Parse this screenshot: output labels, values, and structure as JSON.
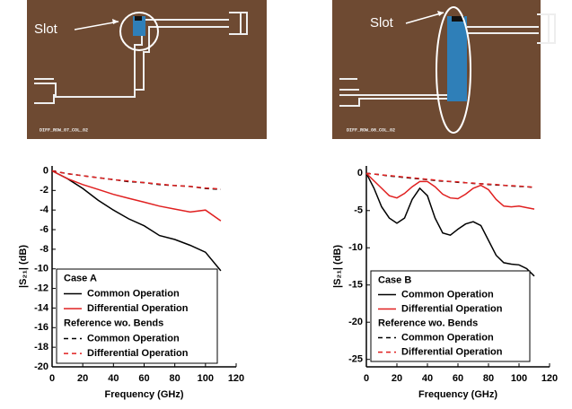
{
  "photos": [
    {
      "label": "Slot",
      "caption": "DIFF_ROW_07_COL_02"
    },
    {
      "label": "Slot",
      "caption": "DIFF_ROW_08_COL_02"
    }
  ],
  "chart_data": [
    {
      "type": "line",
      "xlabel": "Frequency (GHz)",
      "ylabel": "|S₂₁| (dB)",
      "xlim": [
        0,
        120
      ],
      "xticks": [
        0,
        20,
        40,
        60,
        80,
        100,
        120
      ],
      "ylim": [
        -20,
        0.5
      ],
      "yticks": [
        0,
        -2,
        -4,
        -6,
        -8,
        -10,
        -12,
        -14,
        -16,
        -18,
        -20
      ],
      "legend": "lower left",
      "legend_title": "Case A",
      "legend_subtitle": "Reference wo. Bends",
      "x": [
        0,
        10,
        20,
        30,
        40,
        50,
        60,
        70,
        80,
        90,
        100,
        110
      ],
      "series": [
        {
          "name": "Common Operation",
          "color": "#000000",
          "style": "solid",
          "values": [
            0,
            -0.8,
            -1.8,
            -3,
            -4,
            -4.9,
            -5.6,
            -6.6,
            -7.0,
            -7.6,
            -8.3,
            -10.2
          ]
        },
        {
          "name": "Differential Operation",
          "color": "#e02020",
          "style": "solid",
          "values": [
            0,
            -0.8,
            -1.4,
            -1.9,
            -2.4,
            -2.8,
            -3.2,
            -3.6,
            -3.9,
            -4.2,
            -4.0,
            -5.1
          ]
        },
        {
          "name": "Common Operation",
          "color": "#000000",
          "style": "dashed",
          "values": [
            0,
            -0.3,
            -0.5,
            -0.7,
            -0.9,
            -1.1,
            -1.2,
            -1.4,
            -1.5,
            -1.6,
            -1.8,
            -1.9
          ]
        },
        {
          "name": "Differential Operation",
          "color": "#e02020",
          "style": "dashed",
          "values": [
            0,
            -0.3,
            -0.5,
            -0.7,
            -0.9,
            -1.05,
            -1.2,
            -1.35,
            -1.5,
            -1.6,
            -1.75,
            -1.85
          ]
        }
      ]
    },
    {
      "type": "line",
      "xlabel": "Frequency (GHz)",
      "ylabel": "|S₂₁| (dB)",
      "xlim": [
        0,
        120
      ],
      "xticks": [
        0,
        20,
        40,
        60,
        80,
        100,
        120
      ],
      "ylim": [
        -26,
        1
      ],
      "yticks": [
        0,
        -5,
        -10,
        -15,
        -20,
        -25
      ],
      "legend": "lower left",
      "legend_title": "Case B",
      "legend_subtitle": "Reference wo. Bends",
      "x": [
        0,
        5,
        10,
        15,
        20,
        25,
        30,
        35,
        40,
        45,
        50,
        55,
        60,
        65,
        70,
        75,
        80,
        85,
        90,
        95,
        100,
        105,
        110
      ],
      "series": [
        {
          "name": "Common Operation",
          "color": "#000000",
          "style": "solid",
          "values": [
            0,
            -2,
            -4.5,
            -6,
            -6.7,
            -6,
            -3.5,
            -2,
            -3,
            -6,
            -8,
            -8.3,
            -7.5,
            -6.8,
            -6.5,
            -7,
            -9,
            -11,
            -12,
            -12.2,
            -12.3,
            -12.8,
            -13.8
          ]
        },
        {
          "name": "Differential Operation",
          "color": "#e02020",
          "style": "solid",
          "values": [
            0,
            -1,
            -2,
            -3,
            -3.3,
            -2.7,
            -1.8,
            -1.1,
            -1.1,
            -1.8,
            -2.8,
            -3.3,
            -3.4,
            -2.8,
            -2,
            -1.6,
            -2.2,
            -3.5,
            -4.4,
            -4.5,
            -4.4,
            -4.6,
            -4.8
          ]
        },
        {
          "name": "Common Operation",
          "color": "#000000",
          "style": "dashed",
          "values": [
            0,
            -0.1,
            -0.2,
            -0.35,
            -0.45,
            -0.55,
            -0.65,
            -0.75,
            -0.85,
            -0.95,
            -1.05,
            -1.1,
            -1.2,
            -1.25,
            -1.35,
            -1.4,
            -1.5,
            -1.55,
            -1.6,
            -1.7,
            -1.75,
            -1.8,
            -1.9
          ]
        },
        {
          "name": "Differential Operation",
          "color": "#e02020",
          "style": "dashed",
          "values": [
            0,
            -0.1,
            -0.2,
            -0.3,
            -0.4,
            -0.5,
            -0.6,
            -0.7,
            -0.8,
            -0.9,
            -1.0,
            -1.1,
            -1.15,
            -1.25,
            -1.3,
            -1.4,
            -1.45,
            -1.5,
            -1.6,
            -1.65,
            -1.7,
            -1.8,
            -1.85
          ]
        }
      ]
    }
  ]
}
